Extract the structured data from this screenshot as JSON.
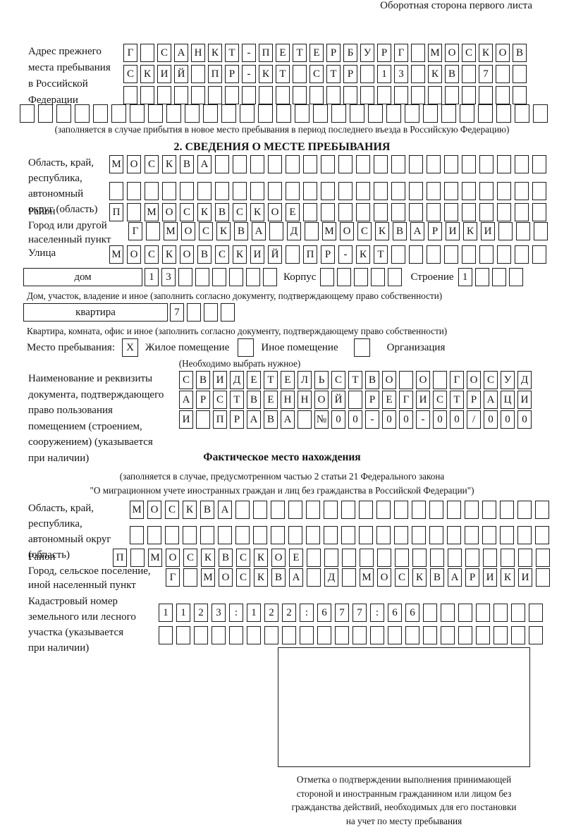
{
  "colors": {
    "ink": "#1c1c1c",
    "paper": "#ffffff"
  },
  "page_header": "Оборотная сторона первого листа",
  "prev_address": {
    "label_lines": [
      "Адрес прежнего",
      "места пребывания",
      "в Российской",
      "Федерации"
    ],
    "rows": [
      [
        "Г",
        "",
        "С",
        "А",
        "Н",
        "К",
        "Т",
        "-",
        "П",
        "Е",
        "Т",
        "Е",
        "Р",
        "Б",
        "У",
        "Р",
        "Г",
        "",
        "М",
        "О",
        "С",
        "К",
        "О",
        "В"
      ],
      [
        "С",
        "К",
        "И",
        "Й",
        "",
        "П",
        "Р",
        "-",
        "К",
        "Т",
        "",
        "С",
        "Т",
        "Р",
        "",
        "1",
        "3",
        "",
        "К",
        "В",
        "",
        "7",
        "",
        ""
      ],
      [
        "",
        "",
        "",
        "",
        "",
        "",
        "",
        "",
        "",
        "",
        "",
        "",
        "",
        "",
        "",
        "",
        "",
        "",
        "",
        "",
        "",
        "",
        "",
        ""
      ]
    ],
    "full_row": [
      "",
      "",
      "",
      "",
      "",
      "",
      "",
      "",
      "",
      "",
      "",
      "",
      "",
      "",
      "",
      "",
      "",
      "",
      "",
      "",
      "",
      "",
      "",
      "",
      "",
      "",
      "",
      "",
      ""
    ],
    "caption": "(заполняется в случае прибытия в новое место пребывания в период последнего въезда в Российскую Федерацию)"
  },
  "section2": {
    "title": "2. СВЕДЕНИЯ О МЕСТЕ ПРЕБЫВАНИЯ",
    "oblast": {
      "label_lines": [
        "Область, край,",
        "республика,",
        "автономный",
        "округ (область)"
      ],
      "rows": [
        [
          "М",
          "О",
          "С",
          "К",
          "В",
          "А",
          "",
          "",
          "",
          "",
          "",
          "",
          "",
          "",
          "",
          "",
          "",
          "",
          "",
          "",
          "",
          "",
          "",
          "",
          ""
        ],
        [
          "",
          "",
          "",
          "",
          "",
          "",
          "",
          "",
          "",
          "",
          "",
          "",
          "",
          "",
          "",
          "",
          "",
          "",
          "",
          "",
          "",
          "",
          "",
          "",
          ""
        ]
      ]
    },
    "raion": {
      "label": "Район",
      "row": [
        "П",
        "",
        "М",
        "О",
        "С",
        "К",
        "В",
        "С",
        "К",
        "О",
        "Е",
        "",
        "",
        "",
        "",
        "",
        "",
        "",
        "",
        "",
        "",
        "",
        "",
        "",
        ""
      ]
    },
    "gorod": {
      "label_lines": [
        "Город или другой",
        "населенный пункт"
      ],
      "row": [
        "Г",
        "",
        "М",
        "О",
        "С",
        "К",
        "В",
        "А",
        "",
        "Д",
        "",
        "М",
        "О",
        "С",
        "К",
        "В",
        "А",
        "Р",
        "И",
        "К",
        "И",
        "",
        "",
        ""
      ]
    },
    "ulitsa": {
      "label": "Улица",
      "row": [
        "М",
        "О",
        "С",
        "К",
        "О",
        "В",
        "С",
        "К",
        "И",
        "Й",
        "",
        "П",
        "Р",
        "-",
        "К",
        "Т",
        "",
        "",
        "",
        "",
        "",
        "",
        "",
        "",
        ""
      ]
    },
    "dom": {
      "box_label": "дом",
      "cells": [
        "1",
        "3",
        "",
        "",
        "",
        "",
        "",
        ""
      ],
      "korpus_label": "Корпус",
      "korpus_cells": [
        "",
        "",
        "",
        "",
        ""
      ],
      "stroenie_label": "Строение",
      "stroenie_cells": [
        "1",
        "",
        "",
        ""
      ],
      "caption": "Дом, участок, владение и иное (заполнить согласно документу, подтверждающему право собственности)"
    },
    "kvartira": {
      "box_label": "квартира",
      "cells": [
        "7",
        "",
        "",
        ""
      ],
      "caption": "Квартира, комната, офис и иное (заполнить согласно документу, подтверждающему право собственности)"
    },
    "mesto": {
      "label": "Место пребывания:",
      "options": [
        {
          "label": "Жилое помещение",
          "mark": "X"
        },
        {
          "label": "Иное помещение",
          "mark": ""
        },
        {
          "label": "Организация",
          "mark": ""
        }
      ],
      "note": "(Необходимо выбрать нужное)"
    },
    "document": {
      "label_lines": [
        "Наименование и реквизиты",
        "документа, подтверждающего",
        "право пользования",
        "помещением (строением,",
        "сооружением) (указывается",
        "при наличии)"
      ],
      "rows": [
        [
          "С",
          "В",
          "И",
          "Д",
          "Е",
          "Т",
          "Е",
          "Л",
          "Ь",
          "С",
          "Т",
          "В",
          "О",
          "",
          "О",
          "",
          "Г",
          "О",
          "С",
          "У",
          "Д"
        ],
        [
          "А",
          "Р",
          "С",
          "Т",
          "В",
          "Е",
          "Н",
          "Н",
          "О",
          "Й",
          "",
          "Р",
          "Е",
          "Г",
          "И",
          "С",
          "Т",
          "Р",
          "А",
          "Ц",
          "И"
        ],
        [
          "И",
          "",
          "П",
          "Р",
          "А",
          "В",
          "А",
          "",
          "№",
          "0",
          "0",
          "-",
          "0",
          "0",
          "-",
          "0",
          "0",
          "/",
          "0",
          "0",
          "0"
        ]
      ]
    }
  },
  "fact": {
    "title": "Фактическое место нахождения",
    "caption_lines": [
      "(заполняется в случае, предусмотренном частью 2 статьи 21 Федерального закона",
      "\"О миграционном учете иностранных граждан и лиц без гражданства в Российской Федерации\")"
    ],
    "oblast": {
      "label_lines": [
        "Область, край,",
        "республика,",
        "автономный округ",
        "(область)"
      ],
      "rows": [
        [
          "М",
          "О",
          "С",
          "К",
          "В",
          "А",
          "",
          "",
          "",
          "",
          "",
          "",
          "",
          "",
          "",
          "",
          "",
          "",
          "",
          "",
          "",
          "",
          "",
          ""
        ],
        [
          "",
          "",
          "",
          "",
          "",
          "",
          "",
          "",
          "",
          "",
          "",
          "",
          "",
          "",
          "",
          "",
          "",
          "",
          "",
          "",
          "",
          "",
          "",
          ""
        ]
      ]
    },
    "raion": {
      "label": "Район",
      "row": [
        "П",
        "",
        "М",
        "О",
        "С",
        "К",
        "В",
        "С",
        "К",
        "О",
        "Е",
        "",
        "",
        "",
        "",
        "",
        "",
        "",
        "",
        "",
        "",
        "",
        "",
        "",
        ""
      ]
    },
    "gorod": {
      "label_lines": [
        "Город, сельское поселение,",
        "иной населенный пункт"
      ],
      "row": [
        "Г",
        "",
        "М",
        "О",
        "С",
        "К",
        "В",
        "А",
        "",
        "Д",
        "",
        "М",
        "О",
        "С",
        "К",
        "В",
        "А",
        "Р",
        "И",
        "К",
        "И",
        ""
      ]
    },
    "kadastr": {
      "label_lines": [
        "Кадастровый номер",
        "земельного или лесного",
        "участка (указывается",
        "при наличии)"
      ],
      "rows": [
        [
          "1",
          "1",
          "2",
          "3",
          ":",
          "1",
          "2",
          "2",
          ":",
          "6",
          "7",
          "7",
          ":",
          "6",
          "6",
          "",
          "",
          "",
          "",
          "",
          "",
          ""
        ],
        [
          "",
          "",
          "",
          "",
          "",
          "",
          "",
          "",
          "",
          "",
          "",
          "",
          "",
          "",
          "",
          "",
          "",
          "",
          "",
          "",
          "",
          ""
        ]
      ]
    }
  },
  "stamp": {
    "caption_lines": [
      "Отметка о подтверждении выполнения принимающей",
      "стороной и иностранным гражданином или лицом без",
      "гражданства действий, необходимых для его постановки",
      "на учет по месту пребывания"
    ]
  }
}
